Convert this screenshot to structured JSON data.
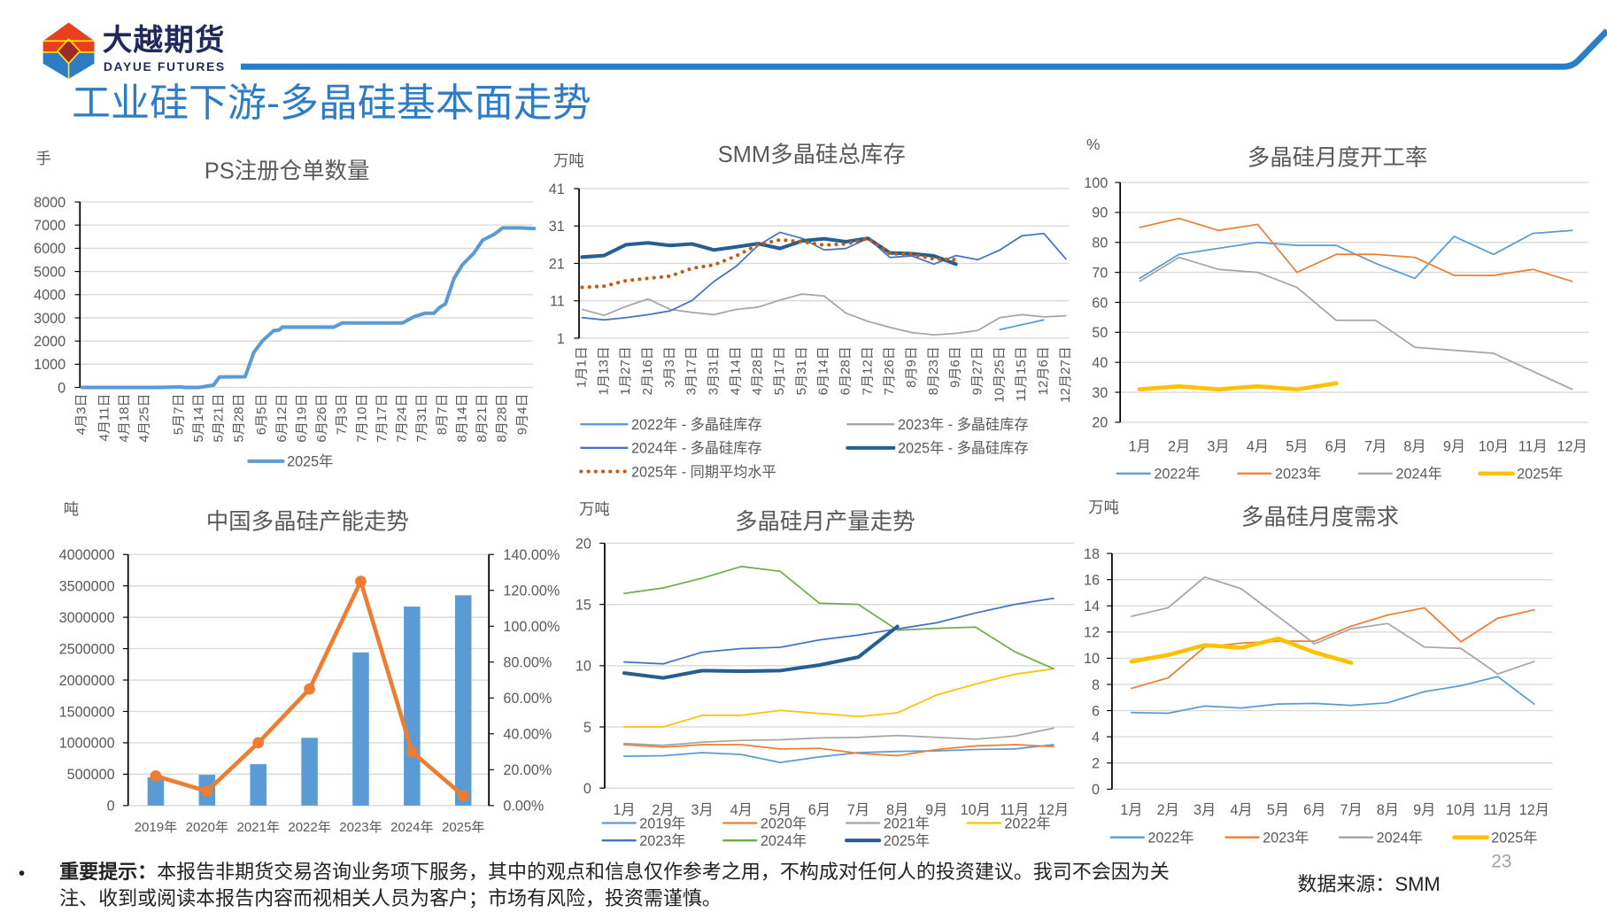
{
  "header": {
    "logo_cn": "大越期货",
    "logo_en": "DAYUE FUTURES",
    "title": "工业硅下游-多晶硅基本面走势"
  },
  "colors": {
    "brand_blue": "#2A7DC8",
    "logo_red": "#E8401C",
    "logo_dark_red": "#A0282A",
    "logo_yellow": "#FFE000",
    "grid": "#D9D9D9",
    "text": "#595959"
  },
  "chart_data": [
    {
      "type": "line",
      "title": "PS注册仓单数量",
      "ylabel": "手",
      "ylim": [
        0,
        8000
      ],
      "ytick_labels": [
        "0",
        "1000",
        "2000",
        "3000",
        "4000",
        "5000",
        "6000",
        "7000",
        "8000"
      ],
      "xtick_labels": [
        "4月3日",
        "4月11日",
        "4月18日",
        "4月25日",
        "5月7日",
        "5月14日",
        "5月21日",
        "5月28日",
        "6月5日",
        "6月12日",
        "6月19日",
        "6月26日",
        "7月3日",
        "7月10日",
        "7月17日",
        "7月24日",
        "7月31日",
        "8月7日",
        "8月14日",
        "8月21日",
        "8月28日",
        "9月4日"
      ],
      "grid": true,
      "legend": "bottom",
      "series": [
        {
          "name": "2025年",
          "color": "#5B9BD5",
          "points": [
            [
              "4月3日",
              0
            ],
            [
              "4月30日",
              0
            ],
            [
              "5月7日",
              20
            ],
            [
              "5月9日",
              0
            ],
            [
              "5月14日",
              0
            ],
            [
              "5月19日",
              100
            ],
            [
              "5月21日",
              450
            ],
            [
              "5月30日",
              460
            ],
            [
              "6月2日",
              1500
            ],
            [
              "6月5日",
              2000
            ],
            [
              "6月9日",
              2450
            ],
            [
              "6月11日",
              2480
            ],
            [
              "6月12日",
              2600
            ],
            [
              "6月30日",
              2600
            ],
            [
              "7月3日",
              2780
            ],
            [
              "7月24日",
              2780
            ],
            [
              "7月28日",
              3050
            ],
            [
              "8月1日",
              3200
            ],
            [
              "8月4日",
              3200
            ],
            [
              "8月6日",
              3450
            ],
            [
              "8月8日",
              3600
            ],
            [
              "8月11日",
              4700
            ],
            [
              "8月14日",
              5300
            ],
            [
              "8月18日",
              5800
            ],
            [
              "8月21日",
              6350
            ],
            [
              "8月25日",
              6600
            ],
            [
              "8月28日",
              6880
            ],
            [
              "9月3日",
              6880
            ],
            [
              "9月8日",
              6850
            ]
          ]
        }
      ]
    },
    {
      "type": "line",
      "title": "SMM多晶硅总库存",
      "ylabel": "万吨",
      "ylim": [
        1,
        41
      ],
      "ytick_labels": [
        "1",
        "11",
        "21",
        "31",
        "41"
      ],
      "xtick_labels": [
        "1月1日",
        "1月13日",
        "1月27日",
        "2月16日",
        "3月3日",
        "3月17日",
        "3月31日",
        "4月14日",
        "4月28日",
        "5月17日",
        "5月31日",
        "6月14日",
        "6月28日",
        "7月12日",
        "7月26日",
        "8月9日",
        "8月23日",
        "9月6日",
        "9月27日",
        "10月25日",
        "11月15日",
        "12月6日",
        "12月27日"
      ],
      "grid": true,
      "legend": "bottom",
      "series": [
        {
          "name": "2022年 - 多晶硅库存",
          "color": "#5B9BD5",
          "values": [
            null,
            null,
            null,
            null,
            null,
            null,
            null,
            null,
            null,
            null,
            null,
            null,
            null,
            null,
            null,
            null,
            null,
            null,
            null,
            3.3,
            4.6,
            5.9,
            null
          ]
        },
        {
          "name": "2023年 - 多晶硅库存",
          "color": "#A5A5A5",
          "values": [
            8.7,
            7.1,
            9.5,
            11.5,
            8.7,
            7.9,
            7.3,
            8.7,
            9.3,
            11.2,
            12.8,
            12.3,
            7.7,
            5.5,
            3.9,
            2.5,
            1.9,
            2.3,
            3.1,
            6.5,
            7.3,
            6.7,
            7.0
          ]
        },
        {
          "name": "2024年 - 多晶硅库存",
          "color": "#4472C4",
          "values": [
            6.5,
            5.9,
            6.5,
            7.3,
            8.3,
            11.1,
            16.2,
            20.2,
            25.8,
            29.3,
            27.7,
            24.6,
            25.0,
            27.7,
            22.6,
            23.0,
            20.8,
            23.1,
            22.0,
            24.6,
            28.4,
            29.0,
            22.2
          ]
        },
        {
          "name": "2025年 - 多晶硅库存",
          "color": "#255E91",
          "values": [
            22.7,
            23.1,
            26.0,
            26.5,
            25.8,
            26.2,
            24.6,
            25.4,
            26.3,
            25.0,
            27.0,
            27.6,
            26.8,
            27.7,
            23.8,
            23.6,
            23.0,
            20.8,
            null,
            null,
            null,
            null,
            null
          ]
        },
        {
          "name": "2025年 - 同期平均水平",
          "color": "#C55A11",
          "dotted": true,
          "values": [
            14.6,
            14.9,
            16.4,
            17.0,
            17.6,
            19.7,
            20.6,
            23.0,
            26.0,
            27.3,
            26.8,
            25.9,
            26.2,
            27.7,
            23.6,
            23.4,
            22.2,
            22.0,
            null,
            null,
            null,
            null,
            null
          ]
        }
      ]
    },
    {
      "type": "line",
      "title": "多晶硅月度开工率",
      "ylabel": "%",
      "ylim": [
        20,
        100
      ],
      "ytick_labels": [
        "20",
        "30",
        "40",
        "50",
        "60",
        "70",
        "80",
        "90",
        "100"
      ],
      "xtick_labels": [
        "1月",
        "2月",
        "3月",
        "4月",
        "5月",
        "6月",
        "7月",
        "8月",
        "9月",
        "10月",
        "11月",
        "12月"
      ],
      "grid": true,
      "legend": "bottom",
      "series": [
        {
          "name": "2022年",
          "color": "#5B9BD5",
          "values": [
            68,
            76,
            78,
            80,
            79,
            79,
            73,
            68,
            82,
            76,
            83,
            84
          ]
        },
        {
          "name": "2023年",
          "color": "#ED7D31",
          "values": [
            85,
            88,
            84,
            86,
            70,
            76,
            76,
            75,
            69,
            69,
            71,
            67
          ]
        },
        {
          "name": "2024年",
          "color": "#A5A5A5",
          "values": [
            67,
            75,
            71,
            70,
            65,
            54,
            54,
            45,
            44,
            43,
            37,
            31
          ]
        },
        {
          "name": "2025年",
          "color": "#FFC000",
          "values": [
            31,
            32,
            31,
            32,
            31,
            33
          ]
        }
      ]
    },
    {
      "type": "bar",
      "title": "中国多晶硅产能走势",
      "ylabel": "吨",
      "ylim": [
        0,
        4000000
      ],
      "ytick_labels": [
        "0",
        "500000",
        "1000000",
        "1500000",
        "2000000",
        "2500000",
        "3000000",
        "3500000",
        "4000000"
      ],
      "y2lim": [
        0,
        140
      ],
      "y2tick_labels": [
        "0.00%",
        "20.00%",
        "40.00%",
        "60.00%",
        "80.00%",
        "100.00%",
        "120.00%",
        "140.00%"
      ],
      "categories": [
        "2019年",
        "2020年",
        "2021年",
        "2022年",
        "2023年",
        "2024年",
        "2025年"
      ],
      "grid": true,
      "bars": {
        "color": "#5B9BD5",
        "values": [
          450000,
          490000,
          660000,
          1080000,
          2440000,
          3170000,
          3350000
        ]
      },
      "line": {
        "color": "#ED7D31",
        "axis": "right",
        "values": [
          16.5,
          8,
          35,
          65,
          125,
          30,
          5.5
        ]
      }
    },
    {
      "type": "line",
      "title": "多晶硅月产量走势",
      "ylabel": "万吨",
      "ylim": [
        0,
        20
      ],
      "ytick_labels": [
        "0",
        "5",
        "10",
        "15",
        "20"
      ],
      "xtick_labels": [
        "1月",
        "2月",
        "3月",
        "4月",
        "5月",
        "6月",
        "7月",
        "8月",
        "9月",
        "10月",
        "11月",
        "12月"
      ],
      "grid": true,
      "legend": "bottom",
      "series": [
        {
          "name": "2019年",
          "color": "#5B9BD5",
          "values": [
            2.6,
            2.65,
            2.9,
            2.75,
            2.1,
            2.55,
            2.9,
            3.0,
            3.05,
            3.15,
            3.2,
            3.55
          ]
        },
        {
          "name": "2020年",
          "color": "#ED7D31",
          "values": [
            3.55,
            3.35,
            3.55,
            3.55,
            3.2,
            3.25,
            2.85,
            2.65,
            3.15,
            3.45,
            3.55,
            3.4
          ]
        },
        {
          "name": "2021年",
          "color": "#A5A5A5",
          "values": [
            3.65,
            3.5,
            3.75,
            3.9,
            3.95,
            4.1,
            4.15,
            4.3,
            4.15,
            4.0,
            4.25,
            4.9
          ]
        },
        {
          "name": "2022年",
          "color": "#FFC000",
          "values": [
            5.0,
            5.0,
            5.95,
            5.95,
            6.35,
            6.1,
            5.85,
            6.15,
            7.6,
            8.5,
            9.3,
            9.75
          ]
        },
        {
          "name": "2023年",
          "color": "#4472C4",
          "values": [
            10.3,
            10.15,
            11.1,
            11.4,
            11.5,
            12.1,
            12.5,
            13.0,
            13.5,
            14.3,
            15.0,
            15.5
          ]
        },
        {
          "name": "2024年",
          "color": "#70AD47",
          "values": [
            15.9,
            16.35,
            17.15,
            18.1,
            17.7,
            15.1,
            15.0,
            12.9,
            13.05,
            13.15,
            11.15,
            9.75
          ]
        },
        {
          "name": "2025年",
          "color": "#255E91",
          "values": [
            9.4,
            9.0,
            9.6,
            9.55,
            9.6,
            10.05,
            10.7,
            13.2
          ]
        }
      ]
    },
    {
      "type": "line",
      "title": "多晶硅月度需求",
      "ylabel": "万吨",
      "ylim": [
        0,
        18
      ],
      "ytick_labels": [
        "0",
        "2",
        "4",
        "6",
        "8",
        "10",
        "12",
        "14",
        "16",
        "18"
      ],
      "xtick_labels": [
        "1月",
        "2月",
        "3月",
        "4月",
        "5月",
        "6月",
        "7月",
        "8月",
        "9月",
        "10月",
        "11月",
        "12月"
      ],
      "grid": true,
      "legend": "bottom",
      "series": [
        {
          "name": "2022年",
          "color": "#5B9BD5",
          "values": [
            5.85,
            5.8,
            6.35,
            6.2,
            6.5,
            6.55,
            6.4,
            6.6,
            7.45,
            7.9,
            8.6,
            6.5
          ]
        },
        {
          "name": "2023年",
          "color": "#ED7D31",
          "values": [
            7.7,
            8.5,
            10.85,
            11.15,
            11.3,
            11.3,
            12.45,
            13.3,
            13.85,
            11.25,
            13.05,
            13.7
          ]
        },
        {
          "name": "2024年",
          "color": "#A5A5A5",
          "values": [
            13.2,
            13.85,
            16.2,
            15.3,
            13.2,
            11.1,
            12.25,
            12.65,
            10.85,
            10.75,
            8.8,
            9.75
          ]
        },
        {
          "name": "2025年",
          "color": "#FFC000",
          "values": [
            9.75,
            10.25,
            11.0,
            10.8,
            11.5,
            10.45,
            9.65
          ]
        }
      ]
    }
  ],
  "footer": {
    "bullet": "•",
    "notice_label": "重要提示：",
    "notice_line1": "本报告非期货交易咨询业务项下服务，其中的观点和信息仅作参考之用，不构成对任何人的投资建议。我司不会因为关",
    "notice_line2": "注、收到或阅读本报告内容而视相关人员为客户；市场有风险，投资需谨慎。",
    "page_number": "23",
    "source": "数据来源：SMM"
  }
}
